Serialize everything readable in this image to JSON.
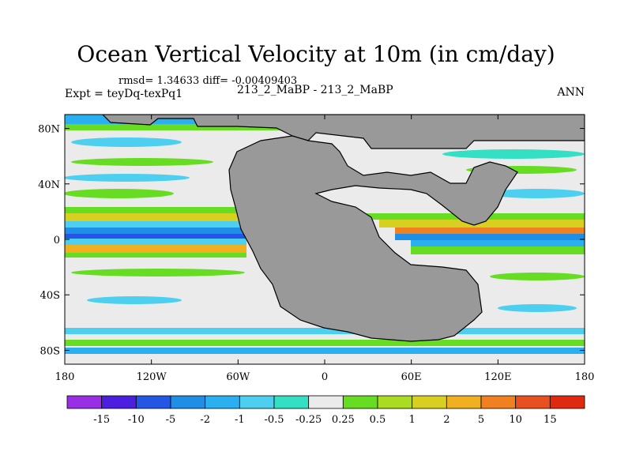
{
  "chart_data": {
    "type": "heatmap",
    "title": "Ocean Vertical Velocity at 10m (in cm/day)",
    "stats": "rmsd= 1.34633 diff= -0.00409403",
    "left_label": "Expt = teyDq-texPq1",
    "center_label": "213_2_MaBP - 213_2_MaBP",
    "right_label": "ANN",
    "x_ticks": [
      "180",
      "120W",
      "60W",
      "0",
      "60E",
      "120E",
      "180"
    ],
    "y_ticks": [
      "80N",
      "40N",
      "0",
      "40S",
      "80S"
    ],
    "x_range": [
      -180,
      180
    ],
    "y_range": [
      -90,
      90
    ],
    "colorbar": {
      "labels": [
        "-15",
        "-10",
        "-5",
        "-2",
        "-1",
        "-0.5",
        "-0.25",
        "0.25",
        "0.5",
        "1",
        "2",
        "5",
        "10",
        "15"
      ],
      "colors": [
        "#9a2ee6",
        "#4b1fe0",
        "#2456e6",
        "#1f8ee6",
        "#2ab0f0",
        "#4dcff0",
        "#33e0c4",
        "#ebebeb",
        "#66dd22",
        "#aadd22",
        "#d8d020",
        "#f0b020",
        "#f08020",
        "#e85020",
        "#e02a10"
      ]
    },
    "land_color": "#999999"
  }
}
